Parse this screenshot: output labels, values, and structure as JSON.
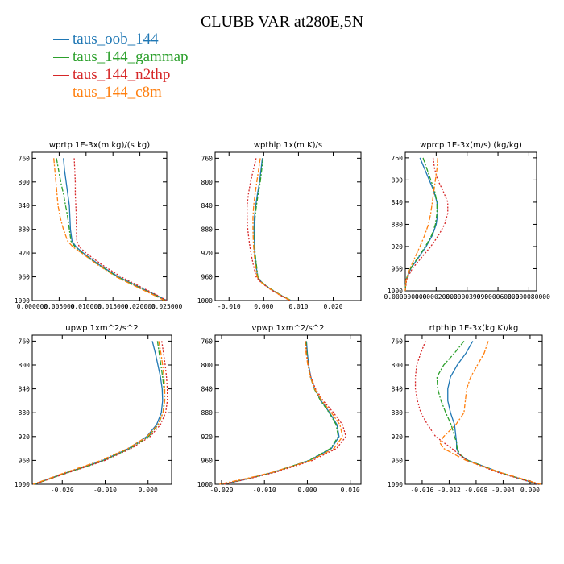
{
  "title": "CLUBB VAR at280E,5N",
  "legend": [
    {
      "label": "taus_oob_144",
      "color": "#1f77b4"
    },
    {
      "label": "taus_144_gammap",
      "color": "#2ca02c"
    },
    {
      "label": "taus_144_n2thp",
      "color": "#d62728"
    },
    {
      "label": "taus_144_c8m",
      "color": "#ff7f0e"
    }
  ],
  "chart_data": [
    {
      "type": "line",
      "title": "wprtp  1E-3x(m kg)/(s kg)",
      "xlim": [
        0.0,
        0.025
      ],
      "xticks": [
        0.0,
        0.005,
        0.01,
        0.015,
        0.02,
        0.025
      ],
      "xtick_labels": [
        "0.000000",
        "0.005000",
        "0.010000",
        "0.015000",
        "0.020000",
        "0.025000"
      ],
      "ylim": [
        1000,
        750
      ],
      "yticks": [
        760,
        800,
        840,
        880,
        920,
        960,
        1000
      ],
      "y": [
        760,
        780,
        800,
        820,
        840,
        860,
        880,
        900,
        910,
        920,
        940,
        960,
        980,
        990,
        1000
      ],
      "series": [
        {
          "name": "taus_oob_144",
          "color": "#1f77b4",
          "dash": "none",
          "values": [
            0.0058,
            0.006,
            0.0063,
            0.0066,
            0.0069,
            0.007,
            0.0071,
            0.0074,
            0.0082,
            0.0095,
            0.0125,
            0.016,
            0.0205,
            0.0228,
            0.025
          ]
        },
        {
          "name": "taus_144_gammap",
          "color": "#2ca02c",
          "dash": "6,2,2,2",
          "values": [
            0.0045,
            0.0049,
            0.0053,
            0.0058,
            0.0062,
            0.0066,
            0.0069,
            0.0072,
            0.008,
            0.0093,
            0.0123,
            0.0158,
            0.0203,
            0.0226,
            0.0248
          ]
        },
        {
          "name": "taus_144_n2thp",
          "color": "#d62728",
          "dash": "2,2",
          "values": [
            0.0078,
            0.0079,
            0.008,
            0.008,
            0.0081,
            0.0082,
            0.0082,
            0.0083,
            0.0088,
            0.01,
            0.013,
            0.0165,
            0.0208,
            0.023,
            0.025
          ]
        },
        {
          "name": "taus_144_c8m",
          "color": "#ff7f0e",
          "dash": "6,2,2,2",
          "values": [
            0.004,
            0.0042,
            0.0044,
            0.0046,
            0.0048,
            0.0052,
            0.0058,
            0.0066,
            0.0076,
            0.0092,
            0.0122,
            0.0156,
            0.0201,
            0.0224,
            0.0246
          ]
        }
      ]
    },
    {
      "type": "line",
      "title": "wpthlp  1x(m K)/s",
      "xlim": [
        -0.014,
        0.028
      ],
      "xticks": [
        -0.01,
        0.0,
        0.01,
        0.02
      ],
      "xtick_labels": [
        "-0.010",
        "0.000",
        "0.010",
        "0.020"
      ],
      "ylim": [
        1000,
        750
      ],
      "yticks": [
        760,
        800,
        840,
        880,
        920,
        960,
        1000
      ],
      "y": [
        760,
        780,
        800,
        820,
        840,
        860,
        880,
        900,
        920,
        940,
        960,
        970,
        980,
        990,
        1000
      ],
      "series": [
        {
          "name": "taus_oob_144",
          "color": "#1f77b4",
          "dash": "none",
          "values": [
            -0.0004,
            -0.0008,
            -0.0012,
            -0.0018,
            -0.0023,
            -0.0027,
            -0.0028,
            -0.0027,
            -0.0026,
            -0.0022,
            -0.0018,
            -0.0005,
            0.0018,
            0.0046,
            0.0078
          ]
        },
        {
          "name": "taus_144_gammap",
          "color": "#2ca02c",
          "dash": "6,2,2,2",
          "values": [
            -0.0002,
            -0.0006,
            -0.001,
            -0.0016,
            -0.0021,
            -0.0025,
            -0.0026,
            -0.0026,
            -0.0025,
            -0.0021,
            -0.0017,
            -0.0004,
            0.0019,
            0.0047,
            0.0079
          ]
        },
        {
          "name": "taus_144_n2thp",
          "color": "#d62728",
          "dash": "2,2",
          "values": [
            -0.0022,
            -0.003,
            -0.0038,
            -0.0044,
            -0.0048,
            -0.0048,
            -0.0046,
            -0.0042,
            -0.0037,
            -0.003,
            -0.0022,
            -0.0007,
            0.0016,
            0.0044,
            0.0076
          ]
        },
        {
          "name": "taus_144_c8m",
          "color": "#ff7f0e",
          "dash": "6,2,2,2",
          "values": [
            -0.001,
            -0.0015,
            -0.002,
            -0.0025,
            -0.0029,
            -0.0031,
            -0.0031,
            -0.003,
            -0.0028,
            -0.0024,
            -0.0019,
            -0.0006,
            0.0017,
            0.0045,
            0.0077
          ]
        }
      ]
    },
    {
      "type": "line",
      "title": "wprcp  1E-3x(m/s) (kg/kg)",
      "xlim": [
        0.0,
        8.5e-05
      ],
      "xticks": [
        0.0,
        2e-05,
        4e-05,
        6e-05,
        8e-05
      ],
      "xtick_labels": [
        "0.000000000",
        "0.000020000",
        "0.000039999",
        "0.000060000",
        "0.000080000"
      ],
      "ylim": [
        1000,
        750
      ],
      "yticks": [
        760,
        800,
        840,
        880,
        920,
        960,
        1000
      ],
      "y": [
        760,
        780,
        800,
        820,
        840,
        860,
        880,
        900,
        920,
        940,
        960,
        980,
        1000
      ],
      "series": [
        {
          "name": "taus_oob_144",
          "color": "#1f77b4",
          "dash": "none",
          "values": [
            9.5e-06,
            1.25e-05,
            1.55e-05,
            1.85e-05,
            2.05e-05,
            2.1e-05,
            2e-05,
            1.75e-05,
            1.35e-05,
            8.5e-06,
            3.5e-06,
            5e-07,
            0.0
          ]
        },
        {
          "name": "taus_144_gammap",
          "color": "#2ca02c",
          "dash": "6,2,2,2",
          "values": [
            1.15e-05,
            1.4e-05,
            1.65e-05,
            1.9e-05,
            2.05e-05,
            2.05e-05,
            1.95e-05,
            1.7e-05,
            1.3e-05,
            8.2e-06,
            3.3e-06,
            5e-07,
            0.0
          ]
        },
        {
          "name": "taus_144_n2thp",
          "color": "#d62728",
          "dash": "2,2",
          "values": [
            1.8e-05,
            1.9e-05,
            2.1e-05,
            2.45e-05,
            2.75e-05,
            2.75e-05,
            2.55e-05,
            2.15e-05,
            1.65e-05,
            1.05e-05,
            4.5e-06,
            8e-07,
            0.0
          ]
        },
        {
          "name": "taus_144_c8m",
          "color": "#ff7f0e",
          "dash": "6,2,2,2",
          "values": [
            2.1e-05,
            2.05e-05,
            1.95e-05,
            1.85e-05,
            1.75e-05,
            1.65e-05,
            1.5e-05,
            1.25e-05,
            9.5e-06,
            6.2e-06,
            3e-06,
            5e-07,
            0.0
          ]
        }
      ]
    },
    {
      "type": "line",
      "title": "upwp  1xm^2/s^2",
      "xlim": [
        -0.027,
        0.0055
      ],
      "xticks": [
        -0.02,
        -0.01,
        0.0
      ],
      "xtick_labels": [
        "-0.020",
        "-0.010",
        "0.000"
      ],
      "ylim": [
        1000,
        750
      ],
      "yticks": [
        760,
        800,
        840,
        880,
        920,
        960,
        1000
      ],
      "y": [
        760,
        780,
        800,
        820,
        840,
        860,
        880,
        900,
        920,
        940,
        960,
        970,
        980,
        990,
        1000
      ],
      "series": [
        {
          "name": "taus_oob_144",
          "color": "#1f77b4",
          "dash": "none",
          "values": [
            0.001,
            0.0017,
            0.0023,
            0.0029,
            0.0033,
            0.0034,
            0.0031,
            0.002,
            -0.0003,
            -0.0045,
            -0.0105,
            -0.0145,
            -0.0188,
            -0.0228,
            -0.0265
          ]
        },
        {
          "name": "taus_144_gammap",
          "color": "#2ca02c",
          "dash": "6,2,2,2",
          "values": [
            0.0022,
            0.0026,
            0.003,
            0.0034,
            0.0037,
            0.0038,
            0.0035,
            0.0024,
            0.0001,
            -0.0042,
            -0.0103,
            -0.0143,
            -0.0186,
            -0.0226,
            -0.0265
          ]
        },
        {
          "name": "taus_144_n2thp",
          "color": "#d62728",
          "dash": "2,2",
          "values": [
            0.0032,
            0.0036,
            0.004,
            0.0043,
            0.0045,
            0.0045,
            0.0041,
            0.0029,
            0.0005,
            -0.0039,
            -0.01,
            -0.0141,
            -0.0184,
            -0.0225,
            -0.0265
          ]
        },
        {
          "name": "taus_144_c8m",
          "color": "#ff7f0e",
          "dash": "6,2,2,2",
          "values": [
            0.0025,
            0.003,
            0.0034,
            0.0037,
            0.0039,
            0.0039,
            0.0035,
            0.0023,
            -0.0002,
            -0.0047,
            -0.011,
            -0.015,
            -0.0192,
            -0.023,
            -0.0268
          ]
        }
      ]
    },
    {
      "type": "line",
      "title": "vpwp  1xm^2/s^2",
      "xlim": [
        -0.0215,
        0.0125
      ],
      "xticks": [
        -0.02,
        -0.01,
        0.0,
        0.01
      ],
      "xtick_labels": [
        "-0.020",
        "-0.010",
        "0.000",
        "0.010"
      ],
      "ylim": [
        1000,
        750
      ],
      "yticks": [
        760,
        800,
        840,
        880,
        920,
        960,
        1000
      ],
      "y": [
        760,
        780,
        800,
        820,
        840,
        860,
        880,
        900,
        920,
        940,
        960,
        980,
        990,
        1000
      ],
      "series": [
        {
          "name": "taus_oob_144",
          "color": "#1f77b4",
          "dash": "none",
          "values": [
            -0.0002,
            0.0,
            0.0003,
            0.0008,
            0.0017,
            0.0032,
            0.0052,
            0.0069,
            0.0074,
            0.0056,
            0.0005,
            -0.008,
            -0.0135,
            -0.0195
          ]
        },
        {
          "name": "taus_144_gammap",
          "color": "#2ca02c",
          "dash": "6,2,2,2",
          "values": [
            -0.0003,
            -0.0001,
            0.0002,
            0.0007,
            0.0016,
            0.0031,
            0.0051,
            0.0067,
            0.0072,
            0.0054,
            0.0004,
            -0.008,
            -0.0135,
            -0.0195
          ]
        },
        {
          "name": "taus_144_n2thp",
          "color": "#d62728",
          "dash": "2,2",
          "values": [
            -0.0004,
            -0.0002,
            0.0002,
            0.0008,
            0.0019,
            0.0037,
            0.0061,
            0.0082,
            0.009,
            0.0068,
            0.0012,
            -0.0075,
            -0.0132,
            -0.0195
          ]
        },
        {
          "name": "taus_144_c8m",
          "color": "#ff7f0e",
          "dash": "6,2,2,2",
          "values": [
            -0.0005,
            -0.0003,
            0.0001,
            0.0007,
            0.0017,
            0.0034,
            0.0056,
            0.0076,
            0.0082,
            0.0062,
            0.0008,
            -0.0082,
            -0.014,
            -0.0205
          ]
        }
      ]
    },
    {
      "type": "line",
      "title": "rtpthlp  1E-3x(kg K)/kg",
      "xlim": [
        -0.0185,
        0.0018
      ],
      "xticks": [
        -0.016,
        -0.012,
        -0.008,
        -0.004,
        0.0
      ],
      "xtick_labels": [
        "-0.016",
        "-0.012",
        "-0.008",
        "-0.004",
        "0.000"
      ],
      "ylim": [
        1000,
        750
      ],
      "yticks": [
        760,
        800,
        840,
        880,
        920,
        960,
        1000
      ],
      "y": [
        760,
        780,
        800,
        820,
        840,
        860,
        880,
        900,
        920,
        930,
        940,
        950,
        960,
        980,
        1000
      ],
      "series": [
        {
          "name": "taus_oob_144",
          "color": "#1f77b4",
          "dash": "none",
          "values": [
            -0.0085,
            -0.0095,
            -0.0108,
            -0.0118,
            -0.0122,
            -0.0122,
            -0.0118,
            -0.0112,
            -0.011,
            -0.0109,
            -0.0109,
            -0.0105,
            -0.0092,
            -0.0045,
            0.0012
          ]
        },
        {
          "name": "taus_144_gammap",
          "color": "#2ca02c",
          "dash": "6,2,2,2",
          "values": [
            -0.0098,
            -0.0112,
            -0.0128,
            -0.0138,
            -0.0137,
            -0.0132,
            -0.0125,
            -0.0117,
            -0.0112,
            -0.0109,
            -0.0108,
            -0.0104,
            -0.0092,
            -0.0045,
            0.0012
          ]
        },
        {
          "name": "taus_144_n2thp",
          "color": "#d62728",
          "dash": "2,2",
          "values": [
            -0.0155,
            -0.0162,
            -0.0168,
            -0.017,
            -0.017,
            -0.0167,
            -0.0162,
            -0.0152,
            -0.014,
            -0.0128,
            -0.0116,
            -0.0105,
            -0.0094,
            -0.0048,
            0.0012
          ]
        },
        {
          "name": "taus_144_c8m",
          "color": "#ff7f0e",
          "dash": "6,2,2,2",
          "values": [
            -0.0062,
            -0.0068,
            -0.0078,
            -0.0088,
            -0.0094,
            -0.0096,
            -0.0098,
            -0.011,
            -0.0128,
            -0.0134,
            -0.0128,
            -0.0112,
            -0.0095,
            -0.0045,
            0.0016
          ]
        }
      ]
    }
  ]
}
